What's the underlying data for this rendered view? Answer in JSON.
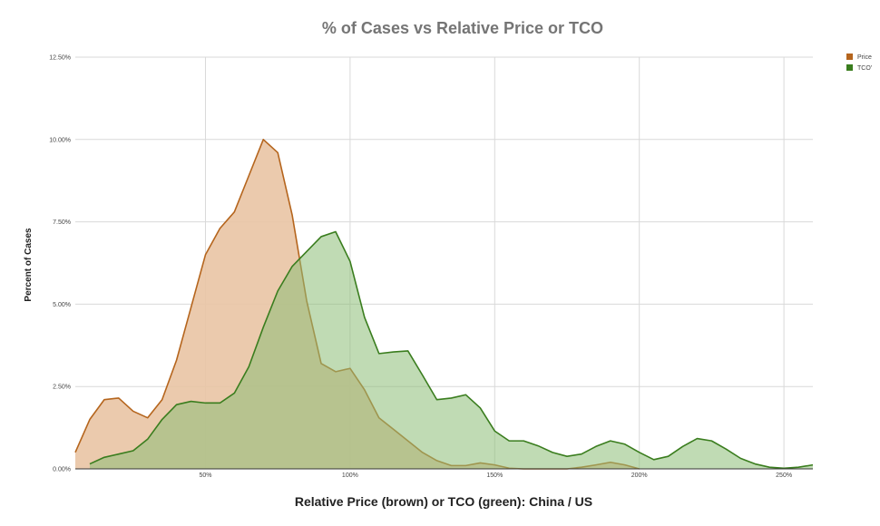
{
  "chart_data": {
    "type": "area",
    "title": "% of Cases vs  Relative Price or TCO",
    "xlabel": "Relative Price (brown) or TCO (green):  China  / US",
    "ylabel": "Percent of Cases",
    "xlim": [
      5,
      260
    ],
    "ylim": [
      0,
      12.5
    ],
    "x_ticks": [
      {
        "value": 50,
        "label": "50%"
      },
      {
        "value": 100,
        "label": "100%"
      },
      {
        "value": 150,
        "label": "150%"
      },
      {
        "value": 200,
        "label": "200%"
      },
      {
        "value": 250,
        "label": "250%"
      }
    ],
    "y_ticks": [
      {
        "value": 0,
        "label": "0.00%"
      },
      {
        "value": 2.5,
        "label": "2.50%"
      },
      {
        "value": 5,
        "label": "5.00%"
      },
      {
        "value": 7.5,
        "label": "7.50%"
      },
      {
        "value": 10,
        "label": "10.00%"
      },
      {
        "value": 12.5,
        "label": "12.50%"
      }
    ],
    "grid": true,
    "legend_position": "top-right",
    "series": [
      {
        "name": "Price",
        "color": "#b5651d",
        "fill": "#e9c4a4",
        "x": [
          5,
          10,
          15,
          20,
          25,
          30,
          35,
          40,
          45,
          50,
          55,
          60,
          65,
          70,
          75,
          80,
          85,
          90,
          95,
          100,
          105,
          110,
          115,
          120,
          125,
          130,
          135,
          140,
          145,
          150,
          155,
          160,
          165,
          170,
          175,
          180,
          185,
          190,
          195,
          200
        ],
        "values": [
          0.5,
          1.5,
          2.1,
          2.15,
          1.75,
          1.55,
          2.1,
          3.3,
          4.9,
          6.5,
          7.3,
          7.8,
          8.9,
          10.0,
          9.6,
          7.7,
          5.1,
          3.2,
          2.95,
          3.05,
          2.4,
          1.55,
          1.2,
          0.85,
          0.5,
          0.25,
          0.1,
          0.1,
          0.18,
          0.12,
          0.02,
          0.0,
          0.0,
          0.0,
          0.0,
          0.05,
          0.12,
          0.2,
          0.12,
          0.0
        ]
      },
      {
        "name": "TCO'",
        "color": "#3a7d1e",
        "fill": "#8cbd77",
        "x": [
          10,
          15,
          20,
          25,
          30,
          35,
          40,
          45,
          50,
          55,
          60,
          65,
          70,
          75,
          80,
          85,
          90,
          95,
          100,
          105,
          110,
          115,
          120,
          125,
          130,
          135,
          140,
          145,
          150,
          155,
          160,
          165,
          170,
          175,
          180,
          185,
          190,
          195,
          200,
          205,
          210,
          215,
          220,
          225,
          230,
          235,
          240,
          245,
          250,
          255,
          260
        ],
        "values": [
          0.15,
          0.35,
          0.45,
          0.55,
          0.9,
          1.5,
          1.95,
          2.05,
          2.0,
          2.0,
          2.3,
          3.1,
          4.3,
          5.4,
          6.15,
          6.6,
          7.05,
          7.2,
          6.3,
          4.6,
          3.5,
          3.55,
          3.58,
          2.85,
          2.1,
          2.15,
          2.25,
          1.85,
          1.15,
          0.85,
          0.85,
          0.7,
          0.5,
          0.38,
          0.45,
          0.68,
          0.85,
          0.75,
          0.5,
          0.28,
          0.38,
          0.68,
          0.92,
          0.85,
          0.6,
          0.32,
          0.15,
          0.05,
          0.02,
          0.05,
          0.12
        ]
      }
    ]
  }
}
